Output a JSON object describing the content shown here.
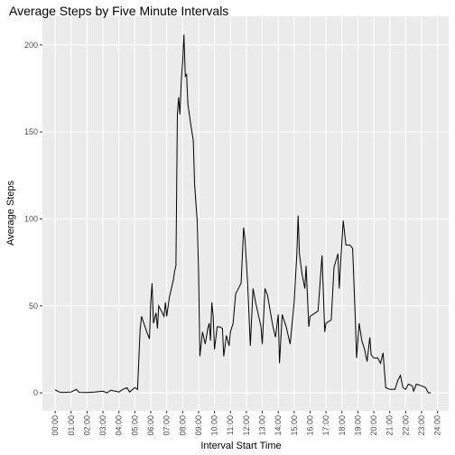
{
  "chart_data": {
    "type": "line",
    "title": "Average Steps by Five Minute Intervals",
    "xlabel": "Interval Start Time",
    "ylabel": "Average Steps",
    "color": "#000000",
    "x": [
      0,
      0.25,
      0.5,
      1,
      1.33,
      1.5,
      2,
      2.5,
      3,
      3.25,
      3.5,
      4,
      4.25,
      4.5,
      4.67,
      5,
      5.17,
      5.33,
      5.42,
      5.75,
      5.92,
      6,
      6.08,
      6.17,
      6.33,
      6.42,
      6.5,
      6.67,
      6.83,
      6.92,
      7,
      7.17,
      7.42,
      7.5,
      7.58,
      7.67,
      7.75,
      7.83,
      7.92,
      8,
      8.08,
      8.17,
      8.25,
      8.33,
      8.5,
      8.67,
      8.75,
      8.92,
      9,
      9.08,
      9.25,
      9.42,
      9.58,
      9.67,
      9.75,
      9.83,
      9.92,
      10,
      10.17,
      10.33,
      10.5,
      10.58,
      10.75,
      10.92,
      11,
      11.17,
      11.33,
      11.5,
      11.67,
      11.83,
      11.92,
      12.08,
      12.25,
      12.42,
      12.58,
      12.75,
      12.92,
      13,
      13.17,
      13.33,
      13.5,
      13.67,
      13.83,
      14,
      14.08,
      14.25,
      14.5,
      14.75,
      15,
      15.17,
      15.25,
      15.33,
      15.5,
      15.67,
      15.75,
      15.92,
      16,
      16.17,
      16.5,
      16.75,
      16.92,
      17,
      17.33,
      17.5,
      17.75,
      17.83,
      17.92,
      18.08,
      18.25,
      18.5,
      18.67,
      18.83,
      18.92,
      19.08,
      19.25,
      19.42,
      19.58,
      19.75,
      19.83,
      20,
      20.25,
      20.42,
      20.58,
      20.75,
      21,
      21.33,
      21.5,
      21.67,
      21.83,
      22,
      22.17,
      22.42,
      22.5,
      22.67,
      23,
      23.25,
      23.42,
      23.58
    ],
    "values": [
      1.7,
      0.5,
      0.2,
      0.5,
      2,
      0.3,
      0.2,
      0.5,
      1,
      0,
      1.5,
      0.5,
      2,
      3,
      0.5,
      3,
      2,
      36,
      44,
      35,
      31,
      52,
      63,
      40,
      46,
      37,
      50,
      47,
      44,
      52,
      44,
      55,
      65,
      70,
      73,
      160,
      170,
      160,
      180,
      190,
      206,
      182,
      183,
      166,
      155,
      145,
      120,
      98,
      70,
      21,
      35,
      28,
      37,
      40,
      30,
      52,
      44,
      25,
      38,
      38,
      37,
      21,
      33,
      27,
      35,
      40,
      57,
      60,
      63,
      95,
      88,
      63,
      27,
      60,
      52,
      45,
      38,
      28,
      60,
      56,
      47,
      38,
      32,
      45,
      17,
      45,
      38,
      28,
      52,
      80,
      102,
      80,
      68,
      60,
      73,
      38,
      44,
      45,
      47,
      79,
      35,
      40,
      42,
      72,
      80,
      60,
      75,
      99,
      85,
      85,
      83,
      45,
      20,
      40,
      30,
      25,
      18,
      32,
      22,
      20,
      20,
      17,
      23,
      3,
      2,
      2,
      7,
      10,
      3,
      2,
      5,
      4,
      1,
      5,
      4,
      3,
      0,
      0
    ],
    "xlim": [
      -0.8,
      24.7
    ],
    "ylim": [
      -10.3,
      216.5
    ],
    "xticks": [
      {
        "value": 0,
        "label": "00:00"
      },
      {
        "value": 1,
        "label": "01:00"
      },
      {
        "value": 2,
        "label": "02:00"
      },
      {
        "value": 3,
        "label": "03:00"
      },
      {
        "value": 4,
        "label": "04:00"
      },
      {
        "value": 5,
        "label": "05:00"
      },
      {
        "value": 6,
        "label": "06:00"
      },
      {
        "value": 7,
        "label": "07:00"
      },
      {
        "value": 8,
        "label": "08:00"
      },
      {
        "value": 9,
        "label": "09:00"
      },
      {
        "value": 10,
        "label": "10:00"
      },
      {
        "value": 11,
        "label": "11:00"
      },
      {
        "value": 12,
        "label": "12:00"
      },
      {
        "value": 13,
        "label": "13:00"
      },
      {
        "value": 14,
        "label": "14:00"
      },
      {
        "value": 15,
        "label": "15:00"
      },
      {
        "value": 16,
        "label": "16:00"
      },
      {
        "value": 17,
        "label": "17:00"
      },
      {
        "value": 18,
        "label": "18:00"
      },
      {
        "value": 19,
        "label": "19:00"
      },
      {
        "value": 20,
        "label": "20:00"
      },
      {
        "value": 21,
        "label": "21:00"
      },
      {
        "value": 22,
        "label": "22:00"
      },
      {
        "value": 23,
        "label": "23:00"
      },
      {
        "value": 24,
        "label": "24:00"
      }
    ],
    "yticks": [
      0,
      50,
      100,
      150,
      200
    ],
    "grid": true
  }
}
